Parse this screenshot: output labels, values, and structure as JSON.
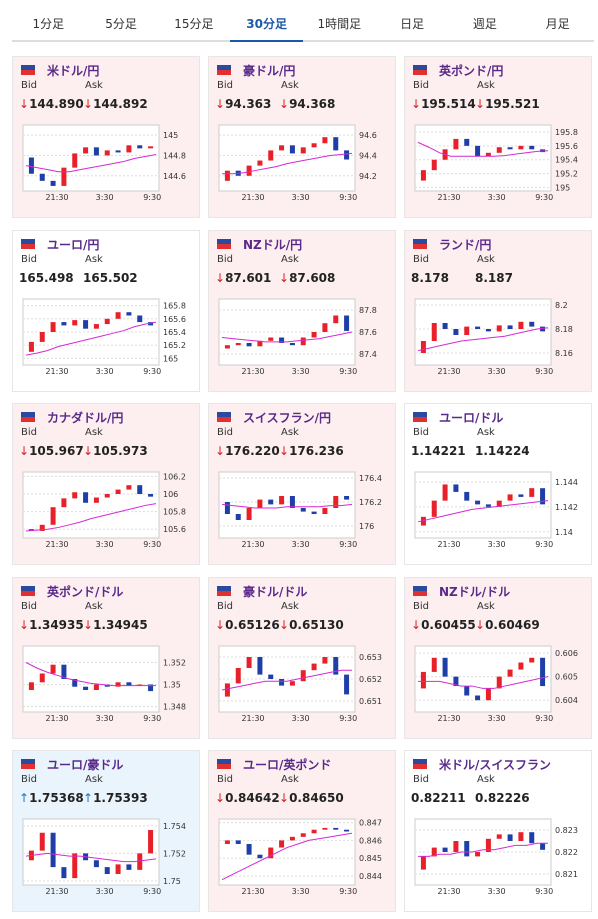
{
  "tabs": [
    "1分足",
    "5分足",
    "15分足",
    "30分足",
    "1時間足",
    "日足",
    "週足",
    "月足"
  ],
  "active_tab": 3,
  "labels": {
    "bid": "Bid",
    "ask": "Ask"
  },
  "x_labels": [
    "21:30",
    "3:30",
    "9:30"
  ],
  "colors": {
    "up_candle": "#e8202a",
    "down_candle": "#1f3fa8",
    "ma": "#d42ad4",
    "down_arrow": "#d42020",
    "up_arrow": "#1a74c8"
  },
  "cards": [
    {
      "pair": "米ドル/円",
      "bid_arrow": "↓",
      "ask_arrow": "↓",
      "bid": "144.890",
      "ask": "144.892",
      "bg": "#fdeff0",
      "ylim": [
        144.45,
        145.1
      ],
      "yticks": [
        144.6,
        144.8,
        145
      ],
      "closes": [
        144.78,
        144.62,
        144.55,
        144.5,
        144.68,
        144.82,
        144.88,
        144.8,
        144.85,
        144.83,
        144.9,
        144.87,
        144.89
      ],
      "ma": [
        144.7,
        144.68,
        144.66,
        144.64,
        144.64,
        144.66,
        144.68,
        144.7,
        144.72,
        144.74,
        144.77,
        144.79,
        144.81
      ]
    },
    {
      "pair": "豪ドル/円",
      "bid_arrow": "↓",
      "ask_arrow": "↓",
      "bid": "94.363",
      "ask": "94.368",
      "bg": "#fdeff0",
      "ylim": [
        94.05,
        94.7
      ],
      "yticks": [
        94.2,
        94.4,
        94.6
      ],
      "closes": [
        94.15,
        94.25,
        94.2,
        94.3,
        94.35,
        94.45,
        94.5,
        94.42,
        94.48,
        94.52,
        94.58,
        94.45,
        94.36
      ],
      "ma": [
        94.22,
        94.22,
        94.23,
        94.25,
        94.27,
        94.29,
        94.32,
        94.34,
        94.36,
        94.38,
        94.4,
        94.41,
        94.42
      ]
    },
    {
      "pair": "英ポンド/円",
      "bid_arrow": "↓",
      "ask_arrow": "↓",
      "bid": "195.514",
      "ask": "195.521",
      "bg": "#fdeff0",
      "ylim": [
        194.95,
        195.9
      ],
      "yticks": [
        195,
        195.2,
        195.4,
        195.6,
        195.8
      ],
      "closes": [
        195.1,
        195.25,
        195.4,
        195.55,
        195.7,
        195.6,
        195.45,
        195.5,
        195.58,
        195.55,
        195.6,
        195.55,
        195.51
      ],
      "ma": [
        195.65,
        195.58,
        195.5,
        195.45,
        195.45,
        195.45,
        195.45,
        195.45,
        195.46,
        195.48,
        195.5,
        195.52,
        195.53
      ]
    },
    {
      "pair": "ユーロ/円",
      "bid": "165.498",
      "ask": "165.502",
      "bg": "#ffffff",
      "ylim": [
        164.9,
        165.9
      ],
      "yticks": [
        165,
        165.2,
        165.4,
        165.6,
        165.8
      ],
      "closes": [
        165.1,
        165.25,
        165.4,
        165.55,
        165.5,
        165.58,
        165.45,
        165.52,
        165.6,
        165.7,
        165.65,
        165.55,
        165.5
      ],
      "ma": [
        165.05,
        165.08,
        165.12,
        165.18,
        165.22,
        165.26,
        165.3,
        165.34,
        165.38,
        165.42,
        165.48,
        165.52,
        165.55
      ]
    },
    {
      "pair": "NZドル/円",
      "bid_arrow": "↓",
      "ask_arrow": "↓",
      "bid": "87.601",
      "ask": "87.608",
      "bg": "#fdeff0",
      "ylim": [
        87.3,
        87.9
      ],
      "yticks": [
        87.4,
        87.6,
        87.8
      ],
      "closes": [
        87.45,
        87.48,
        87.5,
        87.47,
        87.52,
        87.55,
        87.5,
        87.48,
        87.55,
        87.6,
        87.68,
        87.75,
        87.61
      ],
      "ma": [
        87.55,
        87.54,
        87.53,
        87.52,
        87.51,
        87.51,
        87.51,
        87.52,
        87.53,
        87.54,
        87.56,
        87.58,
        87.6
      ]
    },
    {
      "pair": "ランド/円",
      "bid": "8.178",
      "ask": "8.187",
      "bg": "#fdeff0",
      "ylim": [
        8.15,
        8.205
      ],
      "yticks": [
        8.16,
        8.18,
        8.2
      ],
      "closes": [
        8.16,
        8.17,
        8.185,
        8.18,
        8.175,
        8.182,
        8.18,
        8.178,
        8.183,
        8.18,
        8.186,
        8.182,
        8.178
      ],
      "ma": [
        8.162,
        8.164,
        8.166,
        8.168,
        8.17,
        8.171,
        8.172,
        8.173,
        8.174,
        8.176,
        8.178,
        8.18,
        8.181
      ]
    },
    {
      "pair": "カナダドル/円",
      "bid_arrow": "↓",
      "ask_arrow": "↓",
      "bid": "105.967",
      "ask": "105.973",
      "bg": "#fdeff0",
      "ylim": [
        105.5,
        106.25
      ],
      "yticks": [
        105.6,
        105.8,
        106,
        106.2
      ],
      "closes": [
        105.6,
        105.58,
        105.65,
        105.85,
        105.95,
        106.02,
        105.9,
        105.96,
        106,
        106.05,
        106.1,
        106,
        105.97
      ],
      "ma": [
        105.58,
        105.59,
        105.6,
        105.62,
        105.65,
        105.68,
        105.72,
        105.75,
        105.78,
        105.81,
        105.84,
        105.87,
        105.89
      ]
    },
    {
      "pair": "スイスフラン/円",
      "bid_arrow": "↓",
      "ask_arrow": "↓",
      "bid": "176.220",
      "ask": "176.236",
      "bg": "#fdeff0",
      "ylim": [
        175.9,
        176.45
      ],
      "yticks": [
        176,
        176.2,
        176.4
      ],
      "closes": [
        176.2,
        176.1,
        176.05,
        176.15,
        176.22,
        176.18,
        176.25,
        176.15,
        176.12,
        176.1,
        176.15,
        176.25,
        176.22
      ],
      "ma": [
        176.18,
        176.17,
        176.16,
        176.15,
        176.15,
        176.15,
        176.16,
        176.16,
        176.16,
        176.16,
        176.17,
        176.17,
        176.18
      ]
    },
    {
      "pair": "ユーロ/ドル",
      "bid": "1.14221",
      "ask": "1.14224",
      "bg": "#ffffff",
      "ylim": [
        1.1395,
        1.1448
      ],
      "yticks": [
        1.14,
        1.142,
        1.144
      ],
      "closes": [
        1.1405,
        1.1412,
        1.1425,
        1.1438,
        1.1432,
        1.1425,
        1.1422,
        1.142,
        1.1425,
        1.143,
        1.1428,
        1.1435,
        1.1422
      ],
      "ma": [
        1.1408,
        1.141,
        1.1412,
        1.1414,
        1.1416,
        1.1418,
        1.1419,
        1.142,
        1.1421,
        1.1422,
        1.1423,
        1.1424,
        1.1425
      ]
    },
    {
      "pair": "英ポンド/ドル",
      "bid_arrow": "↓",
      "ask_arrow": "↓",
      "bid": "1.34935",
      "ask": "1.34945",
      "bg": "#fdeff0",
      "ylim": [
        1.3475,
        1.3535
      ],
      "yticks": [
        1.348,
        1.35,
        1.352
      ],
      "closes": [
        1.3495,
        1.3502,
        1.351,
        1.3518,
        1.3505,
        1.3498,
        1.3495,
        1.35,
        1.3498,
        1.3502,
        1.3499,
        1.35,
        1.3494
      ],
      "ma": [
        1.352,
        1.3515,
        1.3511,
        1.3508,
        1.3505,
        1.3503,
        1.3501,
        1.35,
        1.3499,
        1.3499,
        1.3499,
        1.3499,
        1.3499
      ]
    },
    {
      "pair": "豪ドル/ドル",
      "bid_arrow": "↓",
      "ask_arrow": "↓",
      "bid": "0.65126",
      "ask": "0.65130",
      "bg": "#fdeff0",
      "ylim": [
        0.6505,
        0.6535
      ],
      "yticks": [
        0.651,
        0.652,
        0.653
      ],
      "closes": [
        0.6512,
        0.6518,
        0.6525,
        0.653,
        0.6522,
        0.652,
        0.6517,
        0.6519,
        0.6524,
        0.6527,
        0.653,
        0.6522,
        0.6513
      ],
      "ma": [
        0.6515,
        0.6516,
        0.6517,
        0.6518,
        0.6519,
        0.6519,
        0.6519,
        0.652,
        0.6521,
        0.6522,
        0.6523,
        0.6524,
        0.6524
      ]
    },
    {
      "pair": "NZドル/ドル",
      "bid_arrow": "↓",
      "ask_arrow": "↓",
      "bid": "0.60455",
      "ask": "0.60469",
      "bg": "#fdeff0",
      "ylim": [
        0.6035,
        0.6063
      ],
      "yticks": [
        0.604,
        0.605,
        0.606
      ],
      "closes": [
        0.6045,
        0.6052,
        0.6058,
        0.605,
        0.6046,
        0.6042,
        0.604,
        0.6045,
        0.605,
        0.6053,
        0.6056,
        0.6058,
        0.6046
      ],
      "ma": [
        0.6048,
        0.6048,
        0.6048,
        0.6047,
        0.6046,
        0.6046,
        0.6045,
        0.6045,
        0.6046,
        0.6047,
        0.6048,
        0.6049,
        0.605
      ]
    },
    {
      "pair": "ユーロ/豪ドル",
      "bid_arrow": "↑",
      "ask_arrow": "↑",
      "bid": "1.75368",
      "ask": "1.75393",
      "bg": "#eaf4fd",
      "ylim": [
        1.7497,
        1.7545
      ],
      "yticks": [
        1.75,
        1.752,
        1.754
      ],
      "closes": [
        1.7515,
        1.7522,
        1.7535,
        1.751,
        1.7502,
        1.752,
        1.7515,
        1.751,
        1.7505,
        1.7512,
        1.7508,
        1.752,
        1.7537
      ],
      "ma": [
        1.7518,
        1.7519,
        1.752,
        1.7519,
        1.7518,
        1.7518,
        1.7517,
        1.7516,
        1.7515,
        1.7514,
        1.7514,
        1.7515,
        1.7516
      ]
    },
    {
      "pair": "ユーロ/英ポンド",
      "bid_arrow": "↓",
      "ask_arrow": "↓",
      "bid": "0.84642",
      "ask": "0.84650",
      "bg": "#fdeff0",
      "ylim": [
        0.8435,
        0.8472
      ],
      "yticks": [
        0.844,
        0.845,
        0.846,
        0.847
      ],
      "closes": [
        0.8458,
        0.846,
        0.8458,
        0.8452,
        0.845,
        0.8456,
        0.846,
        0.8462,
        0.8464,
        0.8466,
        0.8467,
        0.8466,
        0.8465
      ],
      "ma": [
        0.8438,
        0.8441,
        0.8444,
        0.8447,
        0.845,
        0.8453,
        0.8456,
        0.8458,
        0.846,
        0.8461,
        0.8462,
        0.8463,
        0.8464
      ]
    },
    {
      "pair": "米ドル/スイスフラン",
      "bid": "0.82211",
      "ask": "0.82226",
      "bg": "#ffffff",
      "ylim": [
        0.8205,
        0.8235
      ],
      "yticks": [
        0.821,
        0.822,
        0.823
      ],
      "closes": [
        0.8212,
        0.8218,
        0.8222,
        0.822,
        0.8225,
        0.8218,
        0.822,
        0.8226,
        0.8228,
        0.8225,
        0.8229,
        0.8224,
        0.8221
      ],
      "ma": [
        0.8218,
        0.8218,
        0.8219,
        0.8219,
        0.822,
        0.822,
        0.8221,
        0.8221,
        0.8222,
        0.8223,
        0.8223,
        0.8224,
        0.8224
      ]
    }
  ]
}
